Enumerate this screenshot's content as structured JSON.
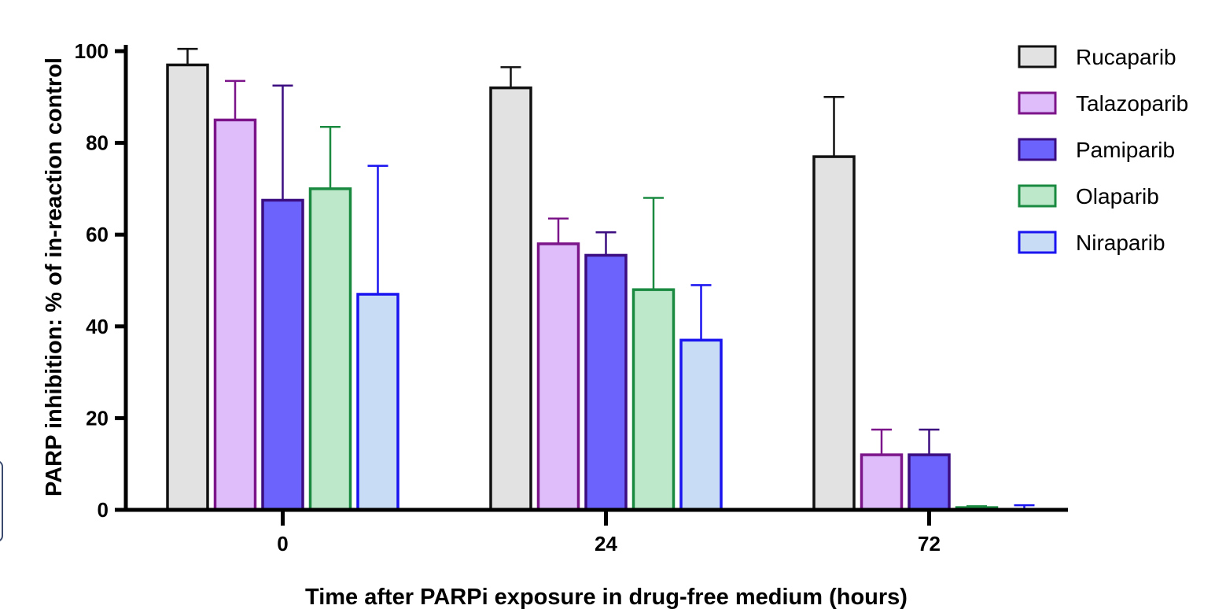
{
  "chart_data": {
    "type": "bar",
    "title": "",
    "xlabel": "Time after PARPi exposure in drug-free medium (hours)",
    "ylabel": "PARP inhibition: % of in-reaction control",
    "ylim": [
      0,
      100
    ],
    "yticks": [
      "0",
      "20",
      "40",
      "60",
      "80",
      "100"
    ],
    "categories": [
      "0",
      "24",
      "72"
    ],
    "legend_position": "top-right",
    "grid": false,
    "series": [
      {
        "name": "Rucaparib",
        "fill": "#e2e2e2",
        "stroke": "#111111",
        "values": [
          97.0,
          92.0,
          77.0
        ],
        "errors": [
          3.5,
          4.5,
          13.0
        ]
      },
      {
        "name": "Talazoparib",
        "fill": "#dfbdfa",
        "stroke": "#7c1589",
        "values": [
          85.0,
          58.0,
          12.0
        ],
        "errors": [
          8.5,
          5.5,
          5.5
        ]
      },
      {
        "name": "Pamiparib",
        "fill": "#6b63fb",
        "stroke": "#3b0d80",
        "values": [
          67.5,
          55.5,
          12.0
        ],
        "errors": [
          25.0,
          5.0,
          5.5
        ]
      },
      {
        "name": "Olaparib",
        "fill": "#bde9ca",
        "stroke": "#1a8a41",
        "values": [
          70.0,
          48.0,
          0.5
        ],
        "errors": [
          13.5,
          20.0,
          0.3
        ]
      },
      {
        "name": "Niraparib",
        "fill": "#c9dcf6",
        "stroke": "#1a14f0",
        "values": [
          47.0,
          37.0,
          0.0
        ],
        "errors": [
          28.0,
          12.0,
          1.0
        ]
      }
    ]
  }
}
